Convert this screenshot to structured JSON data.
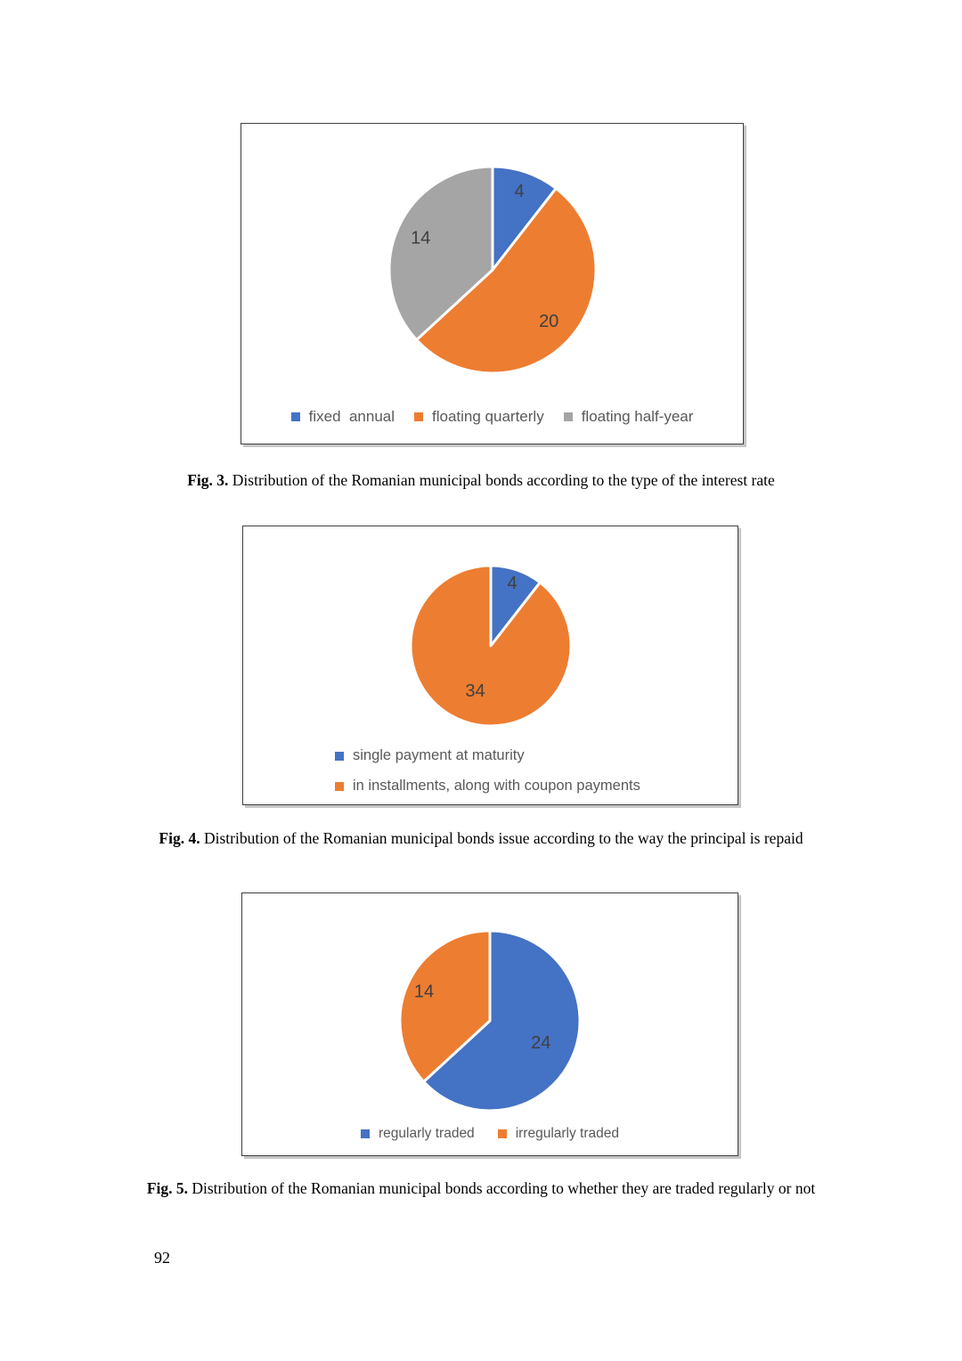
{
  "page": {
    "number": "92",
    "background": "#ffffff"
  },
  "style": {
    "label_color": "#404040",
    "legend_color": "#595959",
    "slice_gap_color": "#ffffff",
    "box_border_color": "#3f3f3f"
  },
  "figures": [
    {
      "caption_label": "Fig. 3.",
      "caption_text": "Distribution of the Romanian municipal bonds according to the type of the interest rate"
    },
    {
      "caption_label": "Fig. 4.",
      "caption_text": "Distribution of the Romanian municipal bonds issue according to the way the principal is repaid"
    },
    {
      "caption_label": "Fig. 5.",
      "caption_text": "Distribution of the Romanian municipal bonds according to whether they are traded regularly or not"
    }
  ],
  "chart_data": [
    {
      "type": "pie",
      "title": "",
      "categories": [
        "fixed  annual",
        "floating quarterly",
        "floating half-year"
      ],
      "values": [
        4,
        20,
        14
      ],
      "data_labels": [
        "4",
        "20",
        "14"
      ],
      "colors": [
        "#4472c4",
        "#ed7d31",
        "#a5a5a5"
      ],
      "start_angle_deg": 0,
      "direction": "clockwise",
      "label_r": [
        0.8,
        0.74,
        0.76
      ],
      "legend": {
        "position": "bottom",
        "layout": "horizontal",
        "entries": [
          "fixed  annual",
          "floating quarterly",
          "floating half-year"
        ]
      }
    },
    {
      "type": "pie",
      "title": "",
      "categories": [
        "single payment at maturity",
        "in installments, along with coupon payments"
      ],
      "values": [
        4,
        34
      ],
      "data_labels": [
        "4",
        "34"
      ],
      "colors": [
        "#4472c4",
        "#ed7d31"
      ],
      "start_angle_deg": 0,
      "direction": "clockwise",
      "label_r": [
        0.82,
        0.6
      ],
      "legend": {
        "position": "bottom-left",
        "layout": "vertical",
        "entries": [
          "single payment at maturity",
          "in installments, along with coupon payments"
        ]
      }
    },
    {
      "type": "pie",
      "title": "",
      "categories": [
        "regularly traded",
        "irregularly traded"
      ],
      "values": [
        24,
        14
      ],
      "data_labels": [
        "24",
        "14"
      ],
      "colors": [
        "#4472c4",
        "#ed7d31"
      ],
      "start_angle_deg": 0,
      "direction": "clockwise",
      "label_r": [
        0.62,
        0.8
      ],
      "legend": {
        "position": "bottom",
        "layout": "horizontal",
        "entries": [
          "regularly traded",
          "irregularly traded"
        ]
      }
    }
  ]
}
